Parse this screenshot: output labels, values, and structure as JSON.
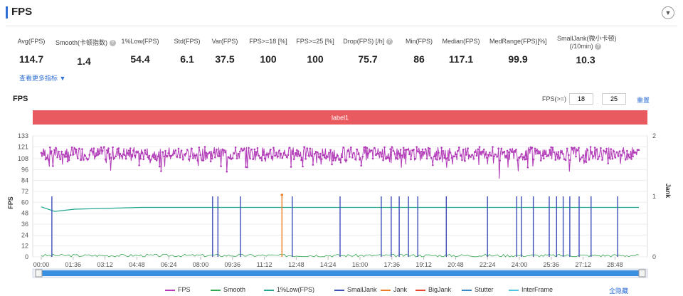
{
  "header": {
    "title": "FPS",
    "toggle_icon": "chevron-down-icon"
  },
  "metrics": [
    {
      "label": "Avg(FPS)",
      "value": "114.7",
      "help": false
    },
    {
      "label": "Smooth(卡顿指数)",
      "value": "1.4",
      "help": true
    },
    {
      "label": "1%Low(FPS)",
      "value": "54.4",
      "help": false
    },
    {
      "label": "Std(FPS)",
      "value": "6.1",
      "help": false
    },
    {
      "label": "Var(FPS)",
      "value": "37.5",
      "help": false
    },
    {
      "label": "FPS>=18 [%]",
      "value": "100",
      "help": false
    },
    {
      "label": "FPS>=25 [%]",
      "value": "100",
      "help": false
    },
    {
      "label": "Drop(FPS) [/h]",
      "value": "75.7",
      "help": true
    },
    {
      "label": "Min(FPS)",
      "value": "86",
      "help": false
    },
    {
      "label": "Median(FPS)",
      "value": "117.1",
      "help": false
    },
    {
      "label": "MedRange(FPS)[%]",
      "value": "99.9",
      "help": false
    },
    {
      "label": "SmallJank(微小卡顿)",
      "label2": "(/10min)",
      "value": "10.3",
      "help": true
    }
  ],
  "more_metrics": "查看更多指标 ▼",
  "chart_title": "FPS",
  "fps_threshold": {
    "label": "FPS(>=)",
    "value1": "18",
    "value2": "25",
    "reset": "重置"
  },
  "band_label": "label1",
  "hide_all": "全隐藏",
  "chart_data": {
    "type": "line",
    "x_ticks": [
      "00:00",
      "01:36",
      "03:12",
      "04:48",
      "06:24",
      "08:00",
      "09:36",
      "11:12",
      "12:48",
      "14:24",
      "16:00",
      "17:36",
      "19:12",
      "20:48",
      "22:24",
      "24:00",
      "25:36",
      "27:12",
      "28:48"
    ],
    "x_range_seconds": [
      0,
      1800
    ],
    "y_left": {
      "label": "FPS",
      "ticks": [
        0,
        12,
        24,
        36,
        48,
        60,
        72,
        84,
        96,
        108,
        121,
        133
      ],
      "ylim": [
        0,
        133
      ]
    },
    "y_right": {
      "label": "Jank",
      "ticks": [
        0,
        1,
        2
      ],
      "ylim": [
        0,
        2
      ]
    },
    "series": [
      {
        "name": "FPS",
        "color": "#b23cb8",
        "axis": "left",
        "typical_range": [
          102,
          121
        ],
        "min": 86,
        "median": 117.1
      },
      {
        "name": "Smooth",
        "color": "#33a852",
        "axis": "left",
        "typical_range": [
          0,
          3
        ]
      },
      {
        "name": "1%Low(FPS)",
        "color": "#1fa88f",
        "axis": "left",
        "start": 55,
        "dip": 50,
        "plateau": 54.4
      },
      {
        "name": "SmallJank",
        "color": "#3f4fb8",
        "axis": "right",
        "events_seconds": [
          32,
          516,
          532,
          600,
          756,
          900,
          1024,
          1054,
          1078,
          1106,
          1134,
          1220,
          1344,
          1432,
          1446,
          1482,
          1530,
          1552,
          1572,
          1592,
          1620,
          1656,
          1736
        ],
        "value": 1
      },
      {
        "name": "Jank",
        "color": "#f07d1f",
        "axis": "right",
        "events_seconds": [
          725
        ],
        "value": 1
      },
      {
        "name": "BigJank",
        "color": "#e8432d",
        "axis": "right",
        "events_seconds": []
      },
      {
        "name": "Stutter",
        "color": "#3a86c8",
        "axis": "right",
        "events_seconds": []
      },
      {
        "name": "InterFrame",
        "color": "#4fc3e0",
        "axis": "right",
        "events_seconds": []
      }
    ],
    "legend_position": "bottom"
  }
}
